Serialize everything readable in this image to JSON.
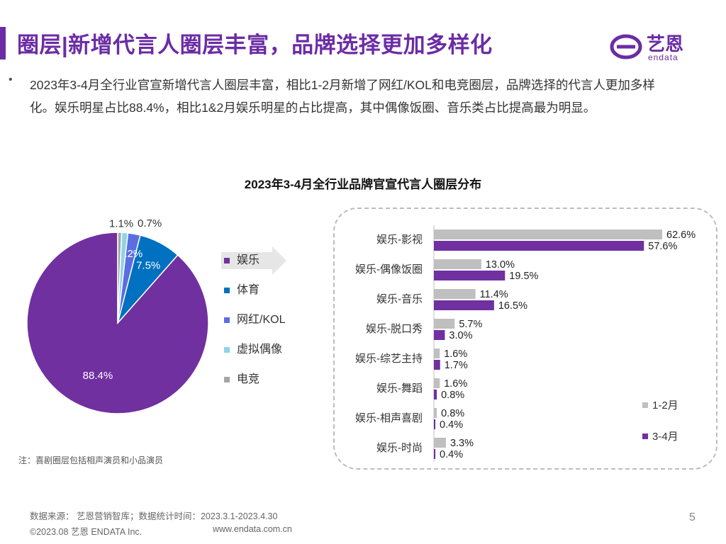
{
  "header": {
    "title": "圈层|新增代言人圈层丰富，品牌选择更加多样化",
    "logo_cn": "艺恩",
    "logo_en": "endata"
  },
  "bullet": {
    "marker": "•",
    "text": "2023年3-4月全行业官宣新增代言人圈层丰富，相比1-2月新增了网红/KOL和电竞圈层，品牌选择的代言人更加多样化。娱乐明星占比88.4%，相比1&2月娱乐明星的占比提高，其中偶像饭圈、音乐类占比提高最为明显。"
  },
  "chart_title": "2023年3-4月全行业品牌官宣代言人圈层分布",
  "colors": {
    "accent": "#6b2ca5",
    "pie": [
      "#7030a0",
      "#0070c0",
      "#5b6ee1",
      "#8fd3e8",
      "#a6a6a6"
    ],
    "bar_1_2": "#bfbfbf",
    "bar_3_4": "#7030a0"
  },
  "chart_data": [
    {
      "type": "pie",
      "title": "2023年3-4月全行业品牌官宣代言人圈层分布",
      "categories": [
        "娱乐",
        "体育",
        "网红/KOL",
        "虚拟偶像",
        "电竞"
      ],
      "values": [
        88.4,
        7.5,
        2.2,
        1.1,
        0.7
      ],
      "labels": [
        "88.4%",
        "7.5%",
        "2.2%",
        "1.1%",
        "0.7%"
      ],
      "legend": "right"
    },
    {
      "type": "bar",
      "orientation": "horizontal",
      "categories": [
        "娱乐-影视",
        "娱乐-偶像饭圈",
        "娱乐-音乐",
        "娱乐-脱口秀",
        "娱乐-综艺主持",
        "娱乐-舞蹈",
        "娱乐-相声喜剧",
        "娱乐-时尚"
      ],
      "series": [
        {
          "name": "1-2月",
          "values": [
            62.6,
            13.0,
            11.4,
            5.7,
            1.6,
            1.6,
            0.8,
            3.3
          ],
          "labels": [
            "62.6%",
            "13.0%",
            "11.4%",
            "5.7%",
            "1.6%",
            "1.6%",
            "0.8%",
            "3.3%"
          ]
        },
        {
          "name": "3-4月",
          "values": [
            57.6,
            19.5,
            16.5,
            3.0,
            1.7,
            0.8,
            0.4,
            0.4
          ],
          "labels": [
            "57.6%",
            "19.5%",
            "16.5%",
            "3.0%",
            "1.7%",
            "0.8%",
            "0.4%",
            "0.4%"
          ]
        }
      ],
      "xlim": [
        0,
        62.6
      ],
      "legend": "bottom-right"
    }
  ],
  "note": "注：喜剧圈层包括相声演员和小品演员",
  "footer": {
    "source": "数据来源： 艺恩营销智库；数据统计时间：2023.3.1-2023.4.30",
    "copyright": "©2023.08 艺恩 ENDATA Inc.",
    "url": "www.endata.com.cn",
    "page": "5"
  }
}
